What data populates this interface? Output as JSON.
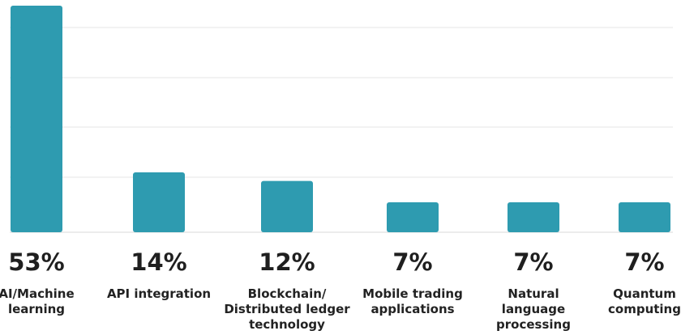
{
  "chart_data": {
    "type": "bar",
    "title": "",
    "xlabel": "",
    "ylabel": "",
    "ylim": [
      0,
      53
    ],
    "grid": true,
    "bar_color": "#2e9bb0",
    "categories": [
      [
        "AI/Machine",
        "learning"
      ],
      [
        "API integration"
      ],
      [
        "Blockchain/",
        "Distributed ledger",
        "technology"
      ],
      [
        "Mobile trading",
        "applications"
      ],
      [
        "Natural",
        "language",
        "processing"
      ],
      [
        "Quantum",
        "computing"
      ]
    ],
    "values": [
      53,
      14,
      12,
      7,
      7,
      7
    ],
    "value_labels": [
      "53%",
      "14%",
      "12%",
      "7%",
      "7%",
      "7%"
    ]
  }
}
